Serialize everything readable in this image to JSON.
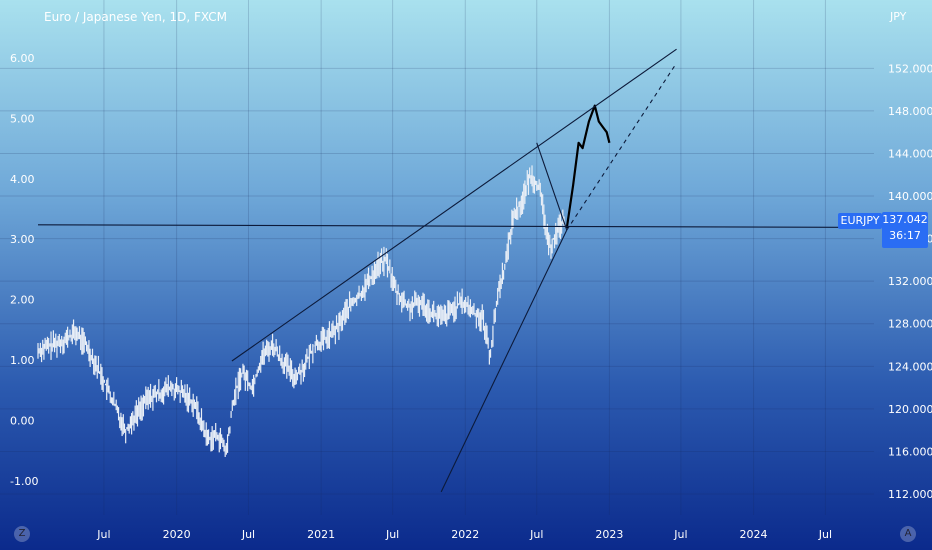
{
  "header": {
    "title": "Euro / Japanese Yen, 1D, FXCM",
    "currency": "JPY"
  },
  "badges": {
    "symbol": "EURJPY",
    "price": "137.042",
    "countdown": "36:17"
  },
  "corner_buttons": {
    "left": "Z",
    "right": "A"
  },
  "colors": {
    "candles": "#e8eef6",
    "lines": "#0c1a3a",
    "badge": "#2a6df4"
  },
  "chart_data": {
    "type": "line",
    "title": "Euro / Japanese Yen, 1D, FXCM",
    "x_ticks": [
      "Jul",
      "2020",
      "Jul",
      "2021",
      "Jul",
      "2022",
      "Jul",
      "2023",
      "Jul",
      "2024",
      "Jul"
    ],
    "x_tick_dates": [
      "2019-07-01",
      "2020-01-01",
      "2020-07-01",
      "2021-01-01",
      "2021-07-01",
      "2022-01-01",
      "2022-07-01",
      "2023-01-01",
      "2023-07-01",
      "2024-01-01",
      "2024-07-01"
    ],
    "y_right_ticks": [
      "152.000",
      "148.000",
      "144.000",
      "140.000",
      "136.000",
      "132.000",
      "128.000",
      "124.000",
      "120.000",
      "116.000",
      "112.000"
    ],
    "y_left_ticks": [
      "6.00",
      "5.00",
      "4.00",
      "3.00",
      "2.00",
      "1.00",
      "0.00",
      "-1.00"
    ],
    "y_range": [
      110.5,
      155.6
    ],
    "x_range": [
      "2019-01-15",
      "2024-11-01"
    ],
    "grid": true,
    "series": [
      {
        "kind": "price",
        "x": [
          "2019-01-15",
          "2019-02-20",
          "2019-03-25",
          "2019-04-20",
          "2019-05-20",
          "2019-06-20",
          "2019-07-20",
          "2019-08-25",
          "2019-09-20",
          "2019-10-20",
          "2019-11-20",
          "2019-12-15",
          "2020-01-15",
          "2020-02-15",
          "2020-03-01",
          "2020-03-20",
          "2020-04-15",
          "2020-05-06",
          "2020-05-25",
          "2020-06-15",
          "2020-07-10",
          "2020-08-05",
          "2020-09-01",
          "2020-09-25",
          "2020-10-25",
          "2020-11-20",
          "2020-12-15",
          "2021-01-10",
          "2021-02-10",
          "2021-03-10",
          "2021-04-05",
          "2021-05-01",
          "2021-05-25",
          "2021-06-15",
          "2021-07-10",
          "2021-08-10",
          "2021-09-10",
          "2021-10-10",
          "2021-11-05",
          "2021-12-05",
          "2021-12-25",
          "2022-01-25",
          "2022-02-15",
          "2022-03-05",
          "2022-03-25",
          "2022-04-15",
          "2022-05-01",
          "2022-05-25",
          "2022-06-15",
          "2022-07-05",
          "2022-07-20",
          "2022-08-01",
          "2022-08-25",
          "2022-09-10"
        ],
        "y": [
          125.5,
          126.0,
          126.5,
          127.2,
          125.8,
          123.5,
          121.0,
          118.0,
          119.5,
          121.0,
          121.5,
          122.0,
          121.5,
          120.5,
          119.0,
          117.2,
          117.5,
          116.0,
          121.0,
          123.5,
          122.0,
          125.0,
          126.0,
          124.5,
          123.0,
          124.0,
          126.0,
          126.5,
          127.5,
          129.5,
          130.5,
          132.0,
          133.5,
          134.0,
          131.0,
          129.5,
          130.0,
          129.0,
          128.5,
          129.5,
          130.0,
          129.0,
          128.5,
          125.0,
          131.0,
          134.0,
          138.0,
          139.5,
          142.0,
          141.0,
          138.0,
          135.0,
          137.0,
          138.0
        ]
      },
      {
        "kind": "projection",
        "x": [
          "2022-09-15",
          "2022-10-01",
          "2022-10-15",
          "2022-10-25",
          "2022-11-10",
          "2022-11-25",
          "2022-12-05",
          "2022-12-15",
          "2022-12-25",
          "2023-01-01"
        ],
        "y": [
          137.0,
          141.0,
          145.0,
          144.5,
          147.0,
          148.5,
          147.0,
          146.5,
          146.0,
          145.0
        ]
      }
    ],
    "trendlines": [
      {
        "style": "solid",
        "from": [
          "2020-05-20",
          124.5
        ],
        "to": [
          "2023-06-20",
          153.8
        ]
      },
      {
        "style": "solid",
        "from": [
          "2021-11-01",
          112.2
        ],
        "to": [
          "2022-09-15",
          136.8
        ]
      },
      {
        "style": "dashed",
        "from": [
          "2022-09-15",
          136.8
        ],
        "to": [
          "2023-06-20",
          152.5
        ]
      },
      {
        "style": "solid",
        "from": [
          "2022-07-01",
          145.0
        ],
        "to": [
          "2022-09-15",
          136.8
        ]
      },
      {
        "style": "solid",
        "from": [
          "2019-01-15",
          137.3
        ],
        "to": [
          "2024-11-01",
          137.05
        ]
      }
    ]
  }
}
